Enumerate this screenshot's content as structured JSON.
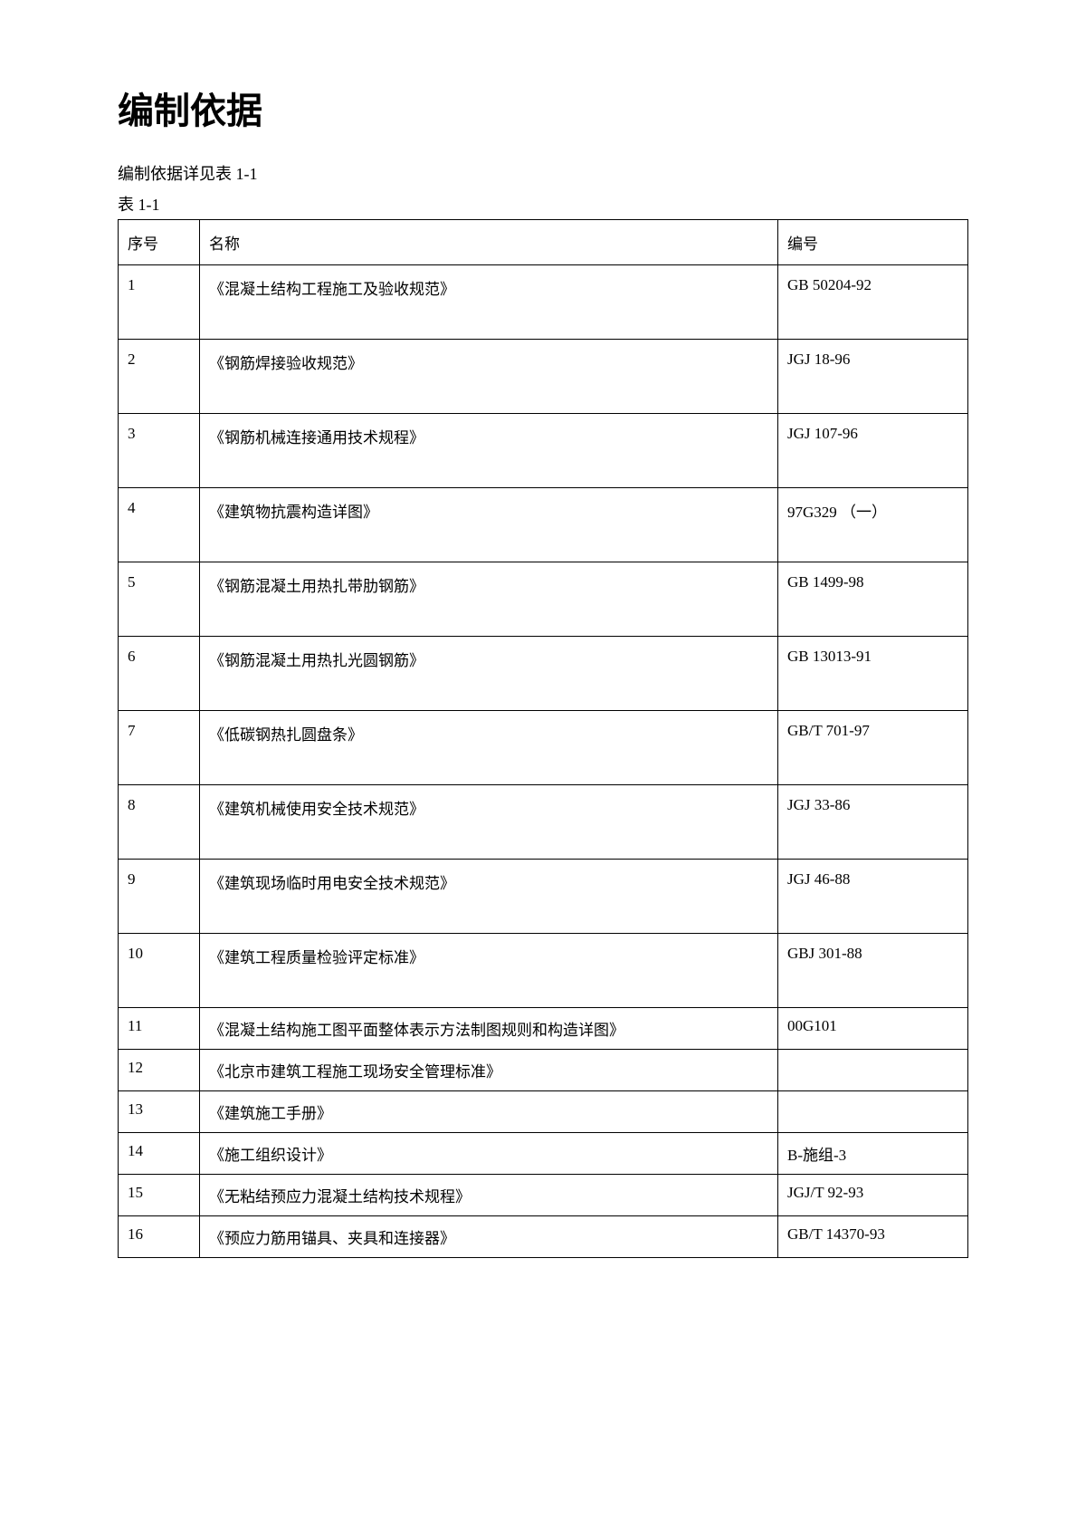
{
  "title": "编制依据",
  "intro": "编制依据详见表 1-1",
  "table_label": "表 1-1",
  "columns": {
    "seq": "序号",
    "name": "名称",
    "code": "编号"
  },
  "rows": [
    {
      "seq": "1",
      "name": "《混凝土结构工程施工及验收规范》",
      "code": "GB 50204-92",
      "tall": true
    },
    {
      "seq": "2",
      "name": "《钢筋焊接验收规范》",
      "code": "JGJ 18-96",
      "tall": true
    },
    {
      "seq": "3",
      "name": "《钢筋机械连接通用技术规程》",
      "code": "JGJ 107-96",
      "tall": true
    },
    {
      "seq": "4",
      "name": "《建筑物抗震构造详图》",
      "code": "97G329 （一）",
      "tall": true
    },
    {
      "seq": "5",
      "name": "《钢筋混凝土用热扎带肋钢筋》",
      "code": "GB 1499-98",
      "tall": true
    },
    {
      "seq": "6",
      "name": "《钢筋混凝土用热扎光圆钢筋》",
      "code": "GB 13013-91",
      "tall": true
    },
    {
      "seq": "7",
      "name": "《低碳钢热扎圆盘条》",
      "code": "GB/T 701-97",
      "tall": true
    },
    {
      "seq": "8",
      "name": "《建筑机械使用安全技术规范》",
      "code": "JGJ 33-86",
      "tall": true
    },
    {
      "seq": "9",
      "name": "《建筑现场临时用电安全技术规范》",
      "code": "JGJ 46-88",
      "tall": true
    },
    {
      "seq": "10",
      "name": "《建筑工程质量检验评定标准》",
      "code": "GBJ 301-88",
      "tall": true
    },
    {
      "seq": "11",
      "name": "《混凝土结构施工图平面整体表示方法制图规则和构造详图》",
      "code": "00G101",
      "tall": false
    },
    {
      "seq": "12",
      "name": "《北京市建筑工程施工现场安全管理标准》",
      "code": "",
      "tall": false
    },
    {
      "seq": "13",
      "name": "《建筑施工手册》",
      "code": "",
      "tall": false
    },
    {
      "seq": "14",
      "name": "《施工组织设计》",
      "code": "B-施组-3",
      "tall": false
    },
    {
      "seq": "15",
      "name": "《无粘结预应力混凝土结构技术规程》",
      "code": "JGJ/T 92-93",
      "tall": false
    },
    {
      "seq": "16",
      "name": "《预应力筋用锚具、夹具和连接器》",
      "code": "GB/T 14370-93",
      "tall": false
    }
  ]
}
